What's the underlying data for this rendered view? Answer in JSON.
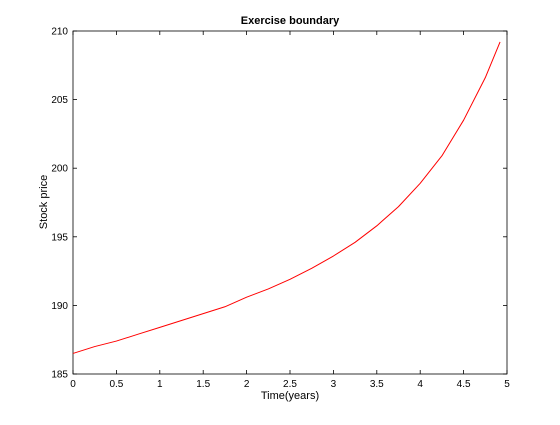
{
  "chart_data": {
    "type": "line",
    "title": "Exercise boundary",
    "xlabel": "Time(years)",
    "ylabel": "Stock price",
    "xlim": [
      0,
      5
    ],
    "ylim": [
      185,
      210
    ],
    "xticks": [
      0,
      0.5,
      1,
      1.5,
      2,
      2.5,
      3,
      3.5,
      4,
      4.5,
      5
    ],
    "xtick_labels": [
      "0",
      "0.5",
      "1",
      "1.5",
      "2",
      "2.5",
      "3",
      "3.5",
      "4",
      "4.5",
      "5"
    ],
    "yticks": [
      185,
      190,
      195,
      200,
      205,
      210
    ],
    "ytick_labels": [
      "185",
      "190",
      "195",
      "200",
      "205",
      "210"
    ],
    "grid": false,
    "series": [
      {
        "color": "#ff0000",
        "x": [
          0,
          0.25,
          0.5,
          0.75,
          1,
          1.25,
          1.5,
          1.75,
          2,
          2.25,
          2.5,
          2.75,
          3,
          3.25,
          3.5,
          3.75,
          4,
          4.25,
          4.5,
          4.75,
          4.92
        ],
        "y": [
          186.5,
          187.0,
          187.4,
          187.9,
          188.4,
          188.9,
          189.4,
          189.9,
          190.6,
          191.2,
          191.9,
          192.7,
          193.6,
          194.6,
          195.8,
          197.2,
          198.9,
          200.9,
          203.5,
          206.6,
          209.2
        ]
      }
    ]
  }
}
